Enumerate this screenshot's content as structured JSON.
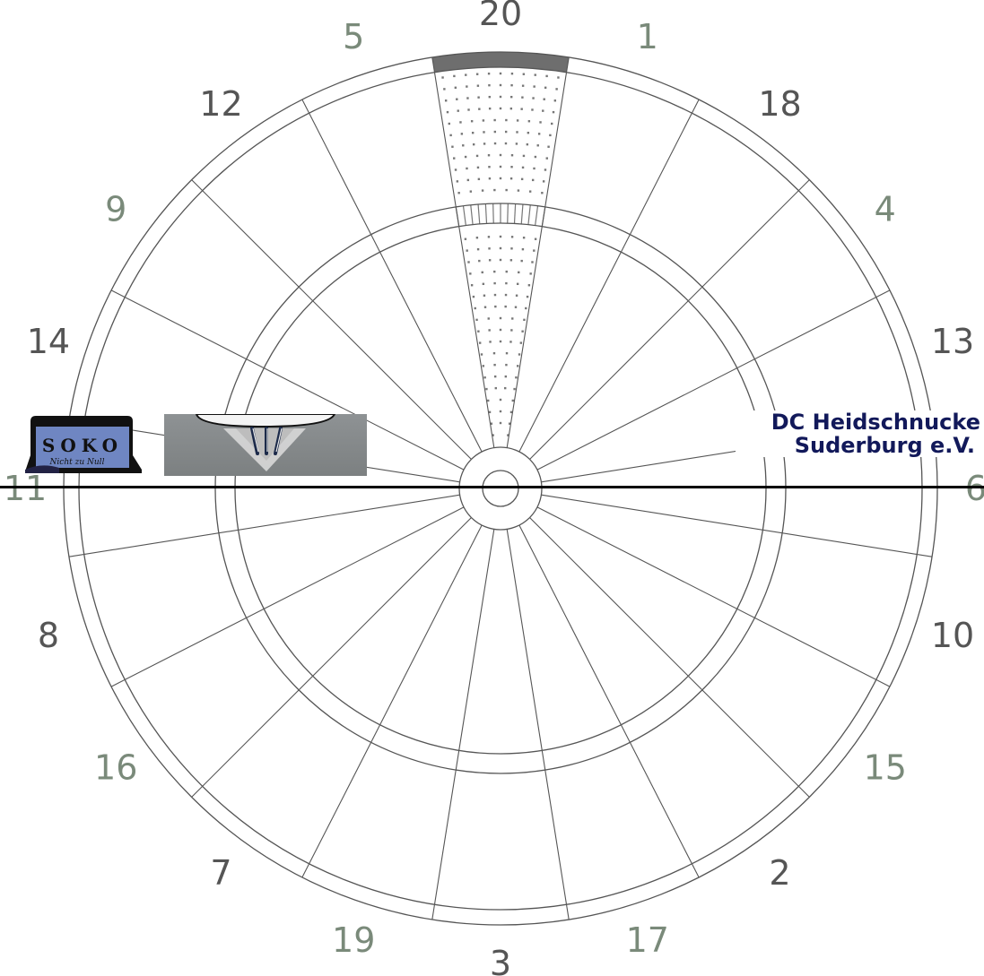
{
  "board": {
    "segments": [
      "20",
      "1",
      "18",
      "4",
      "13",
      "6",
      "10",
      "15",
      "2",
      "17",
      "3",
      "19",
      "7",
      "16",
      "8",
      "11",
      "14",
      "9",
      "12",
      "5"
    ],
    "highlighted_segment": "20",
    "colors": {
      "lines": "#555555",
      "highlight": "#6e6e6e",
      "dots": "#777777"
    }
  },
  "logos": {
    "soko_title": "SOKO",
    "soko_tagline": "Nicht zu Null",
    "club_line1": "DC Heidschnucke",
    "club_line2": "Suderburg e.V."
  }
}
